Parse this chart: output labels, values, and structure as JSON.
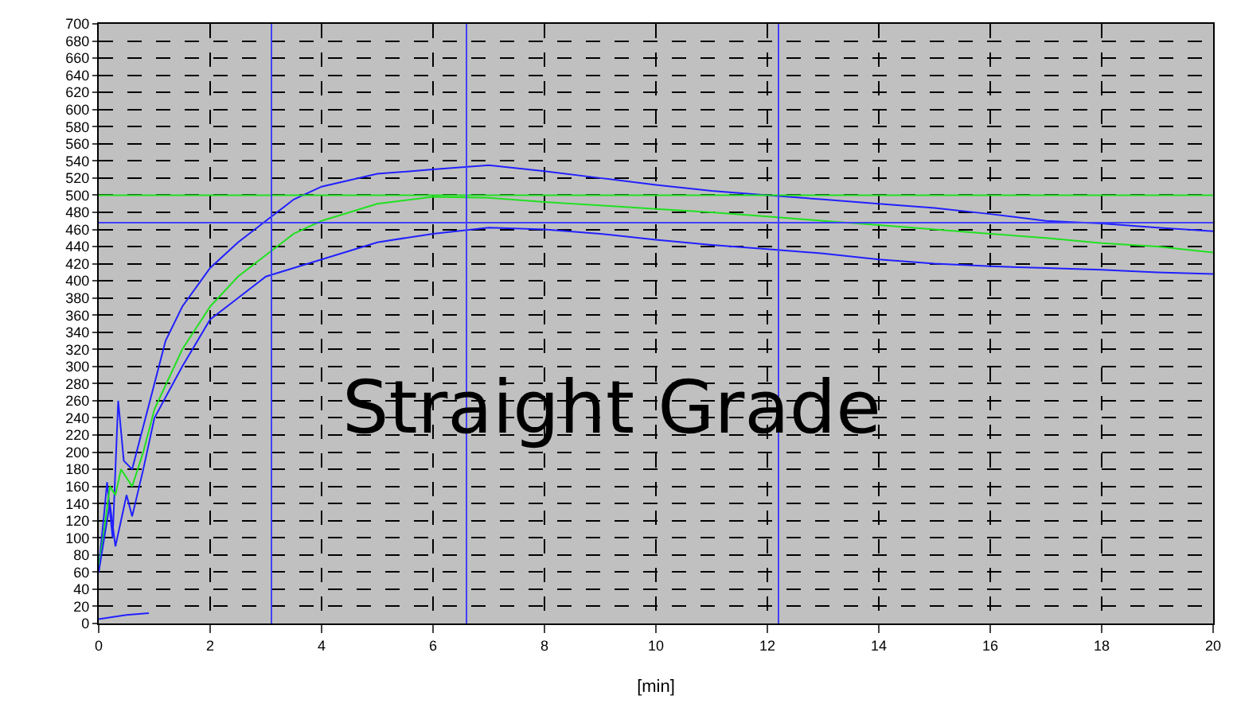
{
  "chart_data": {
    "type": "line",
    "xlabel": "[min]",
    "xlim": [
      0,
      20
    ],
    "xticks": [
      0,
      2,
      4,
      6,
      8,
      10,
      12,
      14,
      16,
      18,
      20
    ],
    "ylim": [
      0,
      700
    ],
    "yticks": [
      0,
      20,
      40,
      60,
      80,
      100,
      120,
      140,
      160,
      180,
      200,
      220,
      240,
      260,
      280,
      300,
      320,
      340,
      360,
      380,
      400,
      420,
      440,
      460,
      480,
      500,
      520,
      540,
      560,
      580,
      600,
      620,
      640,
      660,
      680,
      700
    ],
    "grid": true,
    "line_style": "solid",
    "marker": "none",
    "series": [
      {
        "color": "#2020ff",
        "x": [
          0,
          0.1,
          0.15,
          0.25,
          0.35,
          0.45,
          0.6,
          0.8,
          1,
          1.2,
          1.5,
          2,
          2.5,
          3,
          3.5,
          4,
          5,
          6,
          7,
          8,
          9,
          10,
          11,
          12,
          13,
          14,
          15,
          16,
          17,
          18,
          19,
          20
        ],
        "values": [
          65,
          130,
          165,
          100,
          260,
          190,
          180,
          230,
          280,
          330,
          370,
          415,
          445,
          470,
          495,
          510,
          525,
          530,
          535,
          528,
          520,
          512,
          505,
          500,
          495,
          490,
          485,
          478,
          470,
          467,
          462,
          458
        ]
      },
      {
        "color": "#20e020",
        "x": [
          0,
          0.1,
          0.2,
          0.3,
          0.4,
          0.6,
          0.8,
          1,
          1.5,
          2,
          2.5,
          3,
          3.5,
          4,
          5,
          6,
          7,
          8,
          9,
          10,
          11,
          12,
          13,
          14,
          15,
          16,
          17,
          18,
          19,
          20
        ],
        "values": [
          65,
          110,
          160,
          150,
          180,
          160,
          200,
          250,
          320,
          370,
          405,
          430,
          455,
          470,
          490,
          498,
          497,
          492,
          488,
          484,
          480,
          475,
          470,
          465,
          460,
          455,
          450,
          444,
          440,
          433
        ]
      },
      {
        "color": "#2020ff",
        "x": [
          0,
          0.2,
          0.3,
          0.5,
          0.6,
          0.8,
          1,
          1.5,
          2,
          2.5,
          3,
          4,
          5,
          6,
          7,
          8,
          9,
          10,
          11,
          12,
          13,
          14,
          15,
          16,
          17,
          18,
          19,
          20
        ],
        "values": [
          60,
          140,
          90,
          150,
          125,
          180,
          240,
          300,
          355,
          380,
          405,
          425,
          445,
          455,
          462,
          460,
          455,
          448,
          442,
          437,
          432,
          425,
          420,
          417,
          415,
          413,
          410,
          408
        ]
      },
      {
        "color": "#2020ff",
        "x": [
          0,
          0.5,
          0.9
        ],
        "values": [
          5,
          10,
          12
        ]
      }
    ],
    "ref_lines": [
      {
        "axis": "y",
        "value": 500,
        "color": "#20e020"
      },
      {
        "axis": "y",
        "value": 468,
        "color": "#4040ff"
      },
      {
        "axis": "x",
        "value": 3.1,
        "color": "#4040ff"
      },
      {
        "axis": "x",
        "value": 12.2,
        "color": "#4040ff"
      },
      {
        "axis": "x",
        "value": 6.6,
        "color": "#4040ff"
      }
    ],
    "annotations": [
      "Straight Grade"
    ]
  }
}
